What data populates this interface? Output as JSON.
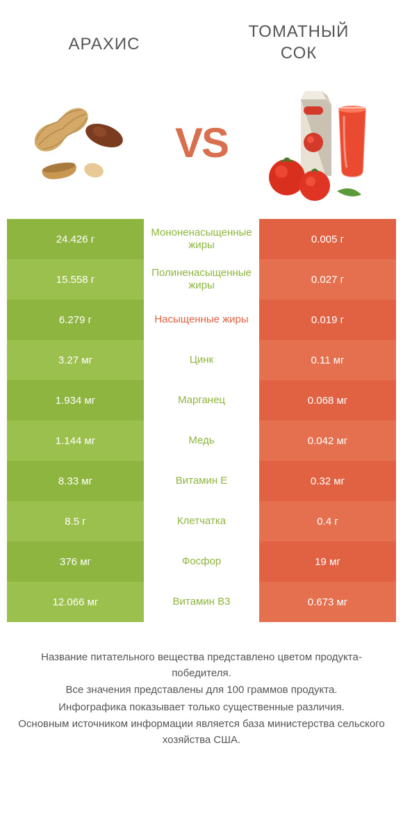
{
  "colors": {
    "green_a": "#8eb53f",
    "green_b": "#9cc04e",
    "orange_a": "#e16243",
    "orange_b": "#e5704f",
    "mid_green": "#8eb53f",
    "mid_orange": "#e16243",
    "title_text": "#555555",
    "vs_text": "#d86f4f"
  },
  "header": {
    "left_title": "АРАХИС",
    "right_title": "ТОМАТНЫЙ СОК",
    "vs": "VS"
  },
  "rows": [
    {
      "left": "24.426 г",
      "mid": "Мононенасыщенные жиры",
      "right": "0.005 г",
      "mid_color_key": "green"
    },
    {
      "left": "15.558 г",
      "mid": "Полиненасыщенные жиры",
      "right": "0.027 г",
      "mid_color_key": "green"
    },
    {
      "left": "6.279 г",
      "mid": "Насыщенные жиры",
      "right": "0.019 г",
      "mid_color_key": "orange"
    },
    {
      "left": "3.27 мг",
      "mid": "Цинк",
      "right": "0.11 мг",
      "mid_color_key": "green"
    },
    {
      "left": "1.934 мг",
      "mid": "Марганец",
      "right": "0.068 мг",
      "mid_color_key": "green"
    },
    {
      "left": "1.144 мг",
      "mid": "Медь",
      "right": "0.042 мг",
      "mid_color_key": "green"
    },
    {
      "left": "8.33 мг",
      "mid": "Витамин E",
      "right": "0.32 мг",
      "mid_color_key": "green"
    },
    {
      "left": "8.5 г",
      "mid": "Клетчатка",
      "right": "0.4 г",
      "mid_color_key": "green"
    },
    {
      "left": "376 мг",
      "mid": "Фосфор",
      "right": "19 мг",
      "mid_color_key": "green"
    },
    {
      "left": "12.066 мг",
      "mid": "Витамин B3",
      "right": "0.673 мг",
      "mid_color_key": "green"
    }
  ],
  "footer": {
    "line1": "Название питательного вещества представлено цветом продукта-победителя.",
    "line2": "Все значения представлены для 100 граммов продукта.",
    "line3": "Инфографика показывает только существенные различия.",
    "line4": "Основным источником информации является база министерства сельского хозяйства США."
  }
}
